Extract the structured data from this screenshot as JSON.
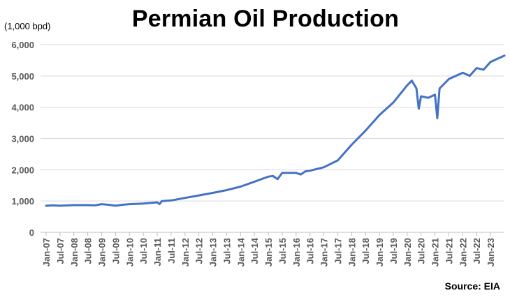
{
  "chart_data": {
    "type": "line",
    "title": "Permian Oil Production",
    "ylabel": "(1,000 bpd)",
    "source": "Source: EIA",
    "ylim": [
      0,
      6000
    ],
    "yticks": [
      "0",
      "1,000",
      "2,000",
      "3,000",
      "4,000",
      "5,000",
      "6,000"
    ],
    "xticks": [
      "Jan-07",
      "Jul-07",
      "Jan-08",
      "Jul-08",
      "Jan-09",
      "Jul-09",
      "Jan-10",
      "Jul-10",
      "Jan-11",
      "Jul-11",
      "Jan-12",
      "Jul-12",
      "Jan-13",
      "Jul-13",
      "Jan-14",
      "Jul-14",
      "Jan-15",
      "Jul-15",
      "Jan-16",
      "Jul-16",
      "Jan-17",
      "Jul-17",
      "Jan-18",
      "Jul-18",
      "Jan-19",
      "Jul-19",
      "Jan-20",
      "Jul-20",
      "Jan-21",
      "Jul-21",
      "Jan-22",
      "Jul-22",
      "Jan-23"
    ],
    "grid": true,
    "line_color": "#4472C4",
    "series": [
      {
        "x": [
          "Jan-07",
          "Apr-07",
          "Jul-07",
          "Jan-08",
          "Jul-08",
          "Oct-08",
          "Jan-09",
          "Apr-09",
          "Jul-09",
          "Oct-09",
          "Jan-10",
          "Jul-10",
          "Jan-11",
          "Feb-11",
          "Mar-11",
          "Jul-11",
          "Jan-12",
          "Jul-12",
          "Jan-13",
          "Jul-13",
          "Jan-14",
          "Jul-14",
          "Jan-15",
          "Mar-15",
          "May-15",
          "Jul-15",
          "Jan-16",
          "Mar-16",
          "May-16",
          "Jul-16",
          "Jan-17",
          "Jul-17",
          "Jan-18",
          "Jul-18",
          "Jan-19",
          "Jul-19",
          "Jan-20",
          "Mar-20",
          "May-20",
          "Jun-20",
          "Jul-20",
          "Oct-20",
          "Jan-21",
          "Feb-21",
          "Mar-21",
          "Jul-21",
          "Jan-22",
          "Apr-22",
          "Jul-22",
          "Oct-22",
          "Jan-23",
          "Apr-23",
          "Jul-23"
        ],
        "values": [
          850,
          860,
          850,
          870,
          870,
          860,
          900,
          880,
          850,
          880,
          900,
          920,
          960,
          900,
          1000,
          1020,
          1100,
          1180,
          1260,
          1350,
          1460,
          1620,
          1780,
          1800,
          1700,
          1900,
          1900,
          1850,
          1950,
          1970,
          2080,
          2300,
          2800,
          3250,
          3750,
          4150,
          4700,
          4850,
          4600,
          3950,
          4350,
          4300,
          4400,
          3650,
          4600,
          4900,
          5100,
          5000,
          5250,
          5200,
          5450,
          5550,
          5650
        ]
      }
    ]
  }
}
